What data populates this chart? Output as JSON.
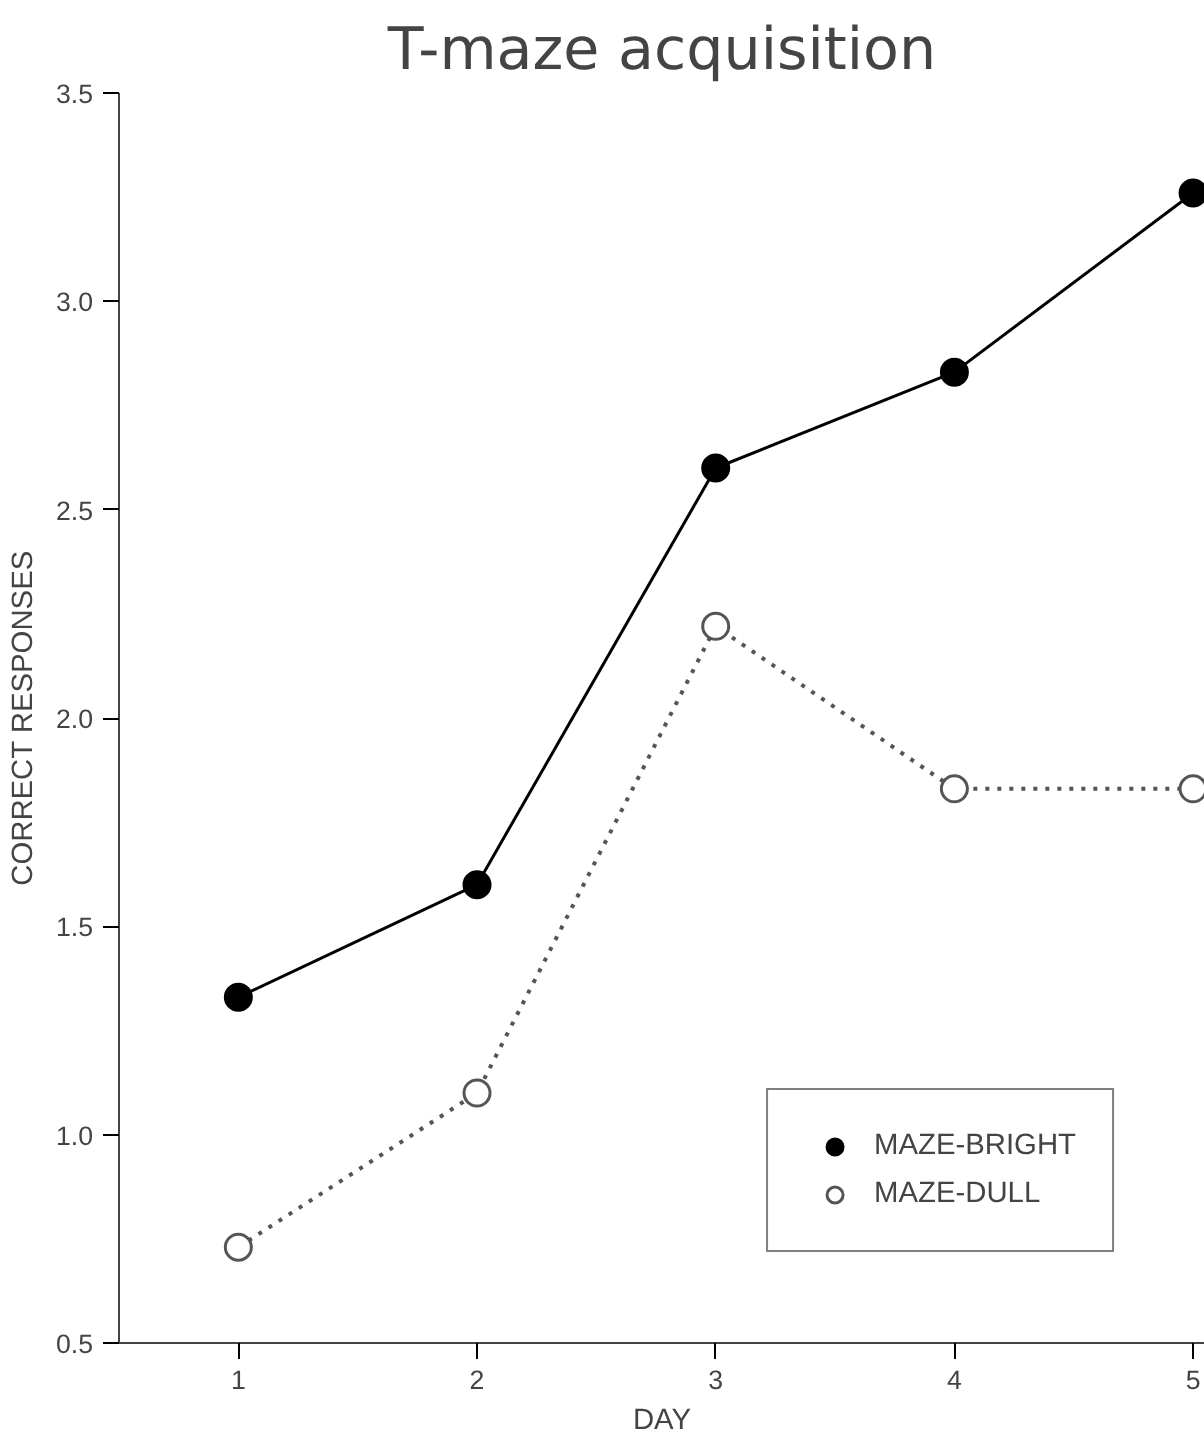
{
  "chart_data": {
    "type": "line",
    "title": "T-maze acquisition",
    "xlabel": "DAY",
    "ylabel": "CORRECT RESPONSES",
    "x": [
      1,
      2,
      3,
      4,
      5
    ],
    "series": [
      {
        "name": "MAZE-BRIGHT",
        "color": "#000000",
        "values": [
          1.33,
          1.6,
          2.6,
          2.83,
          3.26
        ],
        "marker": "circle",
        "line_style": "solid"
      },
      {
        "name": "MAZE-DULL",
        "color": "#555555",
        "values": [
          0.73,
          1.1,
          2.22,
          1.83,
          1.83
        ],
        "marker": "circle",
        "line_style": "dotted"
      }
    ],
    "xlim": [
      0.5,
      5.05
    ],
    "xticks": [
      1,
      2,
      3,
      4,
      5
    ],
    "ylim": [
      0.5,
      3.5
    ],
    "yticks": [
      {
        "value": 0.5,
        "label": "0.5"
      },
      {
        "value": 1.0,
        "label": "1.0"
      },
      {
        "value": 1.5,
        "label": "1.5"
      },
      {
        "value": 2.0,
        "label": "2.0"
      },
      {
        "value": 2.5,
        "label": "2.5"
      },
      {
        "value": 3.0,
        "label": "3.0"
      },
      {
        "value": 3.5,
        "label": "3.5"
      }
    ],
    "grid": false,
    "legend": "bottom right"
  }
}
